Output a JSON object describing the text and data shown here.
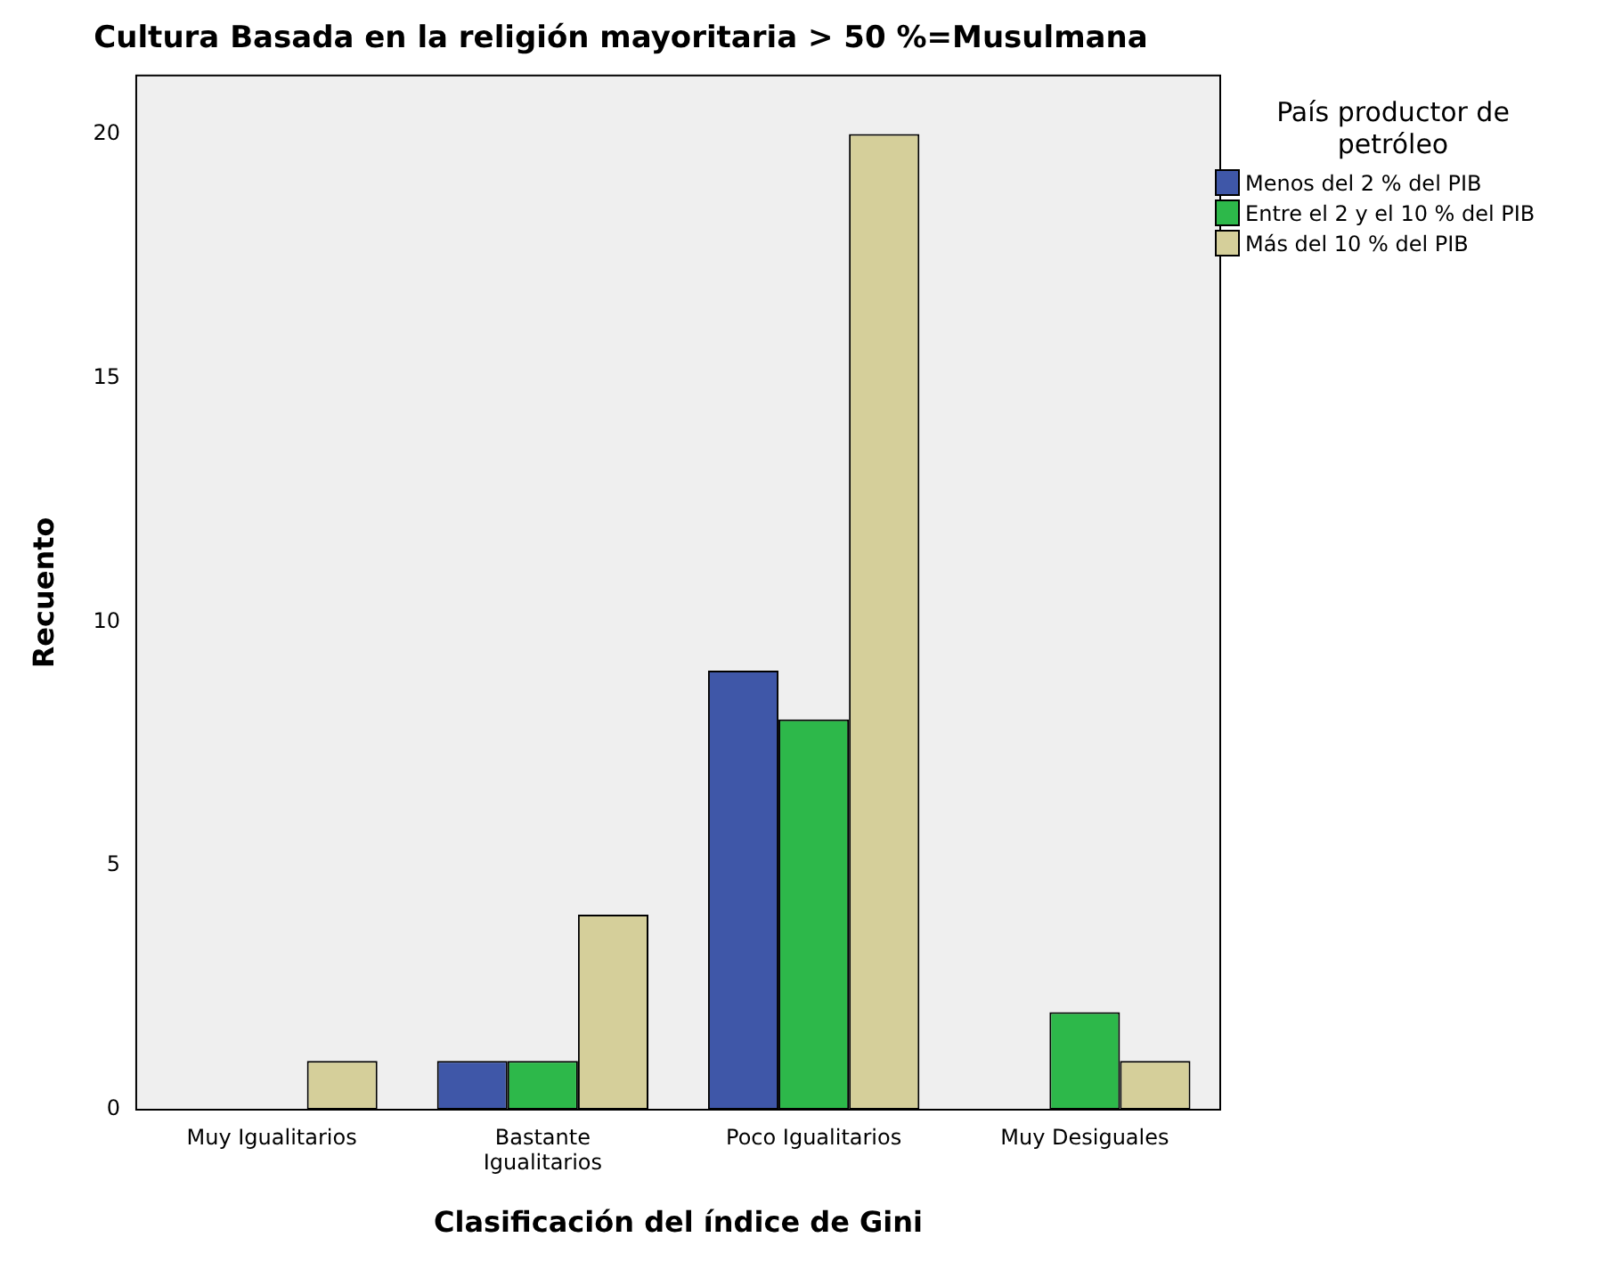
{
  "chart_data": {
    "type": "bar",
    "title": "Cultura Basada en la religión mayoritaria > 50 %=Musulmana",
    "xlabel": "Clasificación del índice de Gini",
    "ylabel": "Recuento",
    "legend_title": "País productor de petróleo",
    "categories": [
      "Muy Igualitarios",
      "Bastante Igualitarios",
      "Poco Igualitarios",
      "Muy Desiguales"
    ],
    "series": [
      {
        "name": "Menos del 2 % del PIB",
        "color": "#3f57a8",
        "values": [
          null,
          1,
          9,
          null
        ]
      },
      {
        "name": "Entre el 2 y el 10 % del PIB",
        "color": "#2db84a",
        "values": [
          null,
          1,
          8,
          2
        ]
      },
      {
        "name": "Más del 10 % del PIB",
        "color": "#d5cf9a",
        "values": [
          1,
          4,
          20,
          1
        ]
      }
    ],
    "ylim": [
      0,
      21.2
    ],
    "yticks": [
      0,
      5,
      10,
      15,
      20
    ],
    "grid": false,
    "legend": "top right"
  }
}
